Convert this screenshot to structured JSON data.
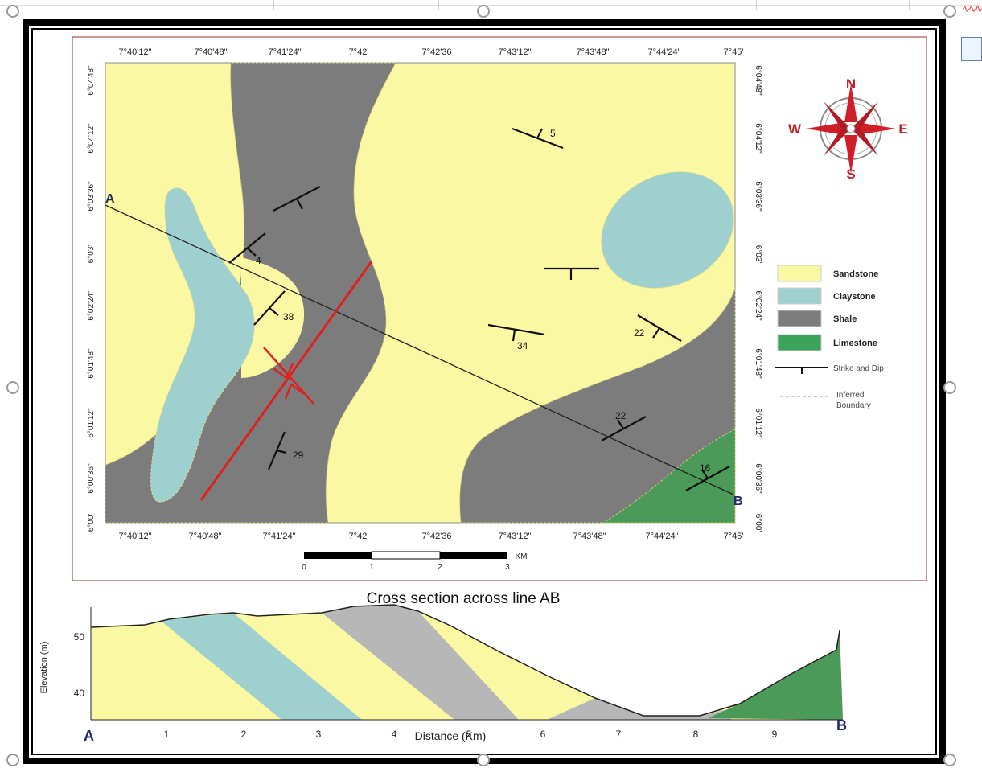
{
  "map": {
    "top_ticks": [
      "7°40'12\"",
      "7°40'48\"",
      "7°41'24\"",
      "7°42'",
      "7°42'36",
      "7°43'12\"",
      "7°43'48\"",
      "7°44'24\"",
      "7°45'"
    ],
    "bottom_ticks": [
      "7°40'12\"",
      "7°40'48\"",
      "7°41'24\"",
      "7°42'",
      "7°42'36",
      "7°43'12\"",
      "7°43'48\"",
      "7°44'24\"",
      "7°45'"
    ],
    "left_ticks": [
      "6°04'48\"",
      "6°04'12\"",
      "6°03'36\"",
      "6°03'",
      "6°02'24\"",
      "6°01'48\"",
      "6°01'12\"",
      "6°00'36\"",
      "6°00'"
    ],
    "right_ticks": [
      "6°04'48\"",
      "6°04'12\"",
      "6°03'36\"",
      "6°03'",
      "6°02'24\"",
      "6°01'48\"",
      "6°01'12\"",
      "6°00'36\"",
      "6°00'"
    ],
    "point_a": "A",
    "point_b": "B",
    "dip_values": [
      "5",
      "4",
      "38",
      "34",
      "22",
      "22",
      "16",
      "29"
    ]
  },
  "compass": {
    "n": "N",
    "e": "E",
    "s": "S",
    "w": "W"
  },
  "legend": {
    "items": [
      {
        "label": "Sandstone",
        "color": "#fbf8a3"
      },
      {
        "label": "Claystone",
        "color": "#9fd0d0"
      },
      {
        "label": "Shale",
        "color": "#7c7c7c"
      },
      {
        "label": "Limestone",
        "color": "#3aa35a"
      }
    ],
    "strike_dip": "Strike and Dip",
    "inferred_line1": "Inferred",
    "inferred_line2": "Boundary"
  },
  "scale_bar": {
    "ticks": [
      "0",
      "1",
      "2",
      "3"
    ],
    "unit": "KM"
  },
  "cross_section": {
    "title": "Cross section across line AB",
    "ylabel": "Elevation (m)",
    "xlabel": "Distance (Km)",
    "yticks": [
      "50",
      "40"
    ],
    "xticks": [
      "1",
      "2",
      "3",
      "4",
      "5",
      "6",
      "7",
      "8",
      "9"
    ],
    "label_a": "A",
    "label_b": "B"
  }
}
